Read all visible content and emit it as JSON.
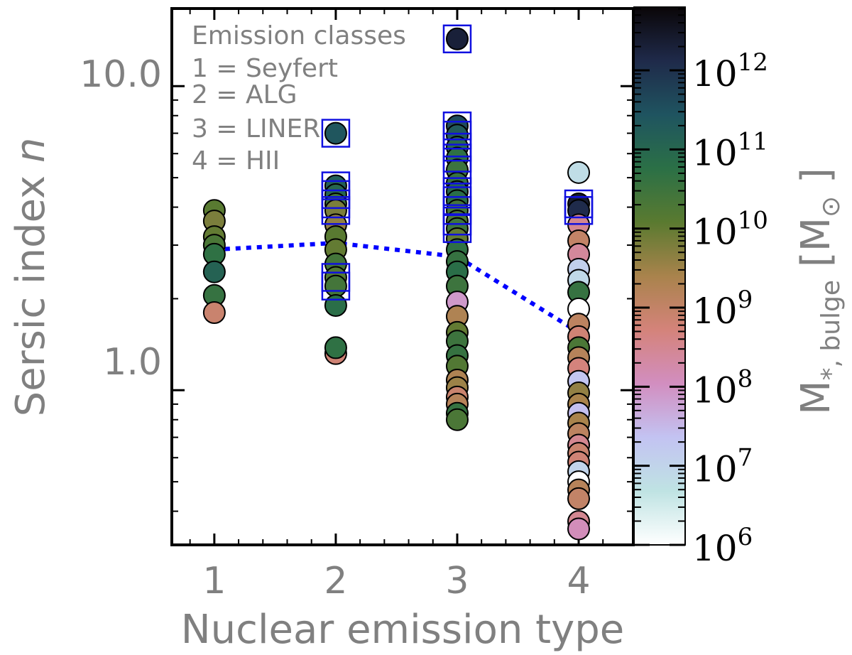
{
  "chart_data": {
    "type": "scatter",
    "xlabel": "Nuclear emission type",
    "ylabel": "Sersic index n",
    "yscale": "log",
    "xlim": [
      0.65,
      4.45
    ],
    "ylim": [
      0.31,
      18.0
    ],
    "xticks": [
      "1",
      "2",
      "3",
      "4"
    ],
    "yticks": [
      "1.0",
      "10.0"
    ],
    "legend_text": {
      "title": "Emission classes",
      "lines": [
        "1 = Seyfert",
        "2 = ALG",
        "3 = LINER",
        "4 = HII"
      ]
    },
    "colorbar": {
      "label": "M*, bulge [M⊙]",
      "scale": "log",
      "range": [
        6.0,
        12.8
      ],
      "tick_labels": [
        "10^6",
        "10^7",
        "10^8",
        "10^9",
        "10^10",
        "10^11",
        "10^12"
      ],
      "colors": [
        "#ffffff",
        "#bfe3e3",
        "#c3c3f2",
        "#d28ec0",
        "#d4837a",
        "#a9834c",
        "#5a7a30",
        "#2b7046",
        "#1f5460",
        "#1f2a4a",
        "#0a0608"
      ]
    },
    "trend_line": {
      "style": "dotted",
      "color": "#0000ff",
      "x": [
        1,
        2,
        3,
        4
      ],
      "y": [
        2.9,
        3.05,
        2.75,
        1.55
      ]
    },
    "points": [
      {
        "x": 1,
        "n": 3.9,
        "logM": 10.1
      },
      {
        "x": 1,
        "n": 3.6,
        "logM": 9.8
      },
      {
        "x": 1,
        "n": 3.2,
        "logM": 10.0
      },
      {
        "x": 1,
        "n": 3.0,
        "logM": 10.3
      },
      {
        "x": 1,
        "n": 2.8,
        "logM": 10.7
      },
      {
        "x": 1,
        "n": 2.45,
        "logM": 11.1
      },
      {
        "x": 1,
        "n": 2.05,
        "logM": 10.6
      },
      {
        "x": 1,
        "n": 1.8,
        "logM": 8.9
      },
      {
        "x": 2,
        "n": 7.0,
        "logM": 11.4,
        "boxed": true
      },
      {
        "x": 2,
        "n": 4.7,
        "logM": 11.2,
        "boxed": true
      },
      {
        "x": 2,
        "n": 4.4,
        "logM": 11.0,
        "boxed": true
      },
      {
        "x": 2,
        "n": 4.1,
        "logM": 10.5,
        "boxed": true
      },
      {
        "x": 2,
        "n": 3.9,
        "logM": 9.8,
        "boxed": true
      },
      {
        "x": 2,
        "n": 3.5,
        "logM": 9.6
      },
      {
        "x": 2,
        "n": 3.2,
        "logM": 10.1
      },
      {
        "x": 2,
        "n": 2.9,
        "logM": 10.0
      },
      {
        "x": 2,
        "n": 2.6,
        "logM": 10.4
      },
      {
        "x": 2,
        "n": 2.35,
        "logM": 10.2,
        "boxed": true
      },
      {
        "x": 2,
        "n": 2.2,
        "logM": 10.4,
        "boxed": true
      },
      {
        "x": 2,
        "n": 1.9,
        "logM": 10.8
      },
      {
        "x": 2,
        "n": 1.32,
        "logM": 8.8
      },
      {
        "x": 2,
        "n": 1.38,
        "logM": 10.7
      },
      {
        "x": 3,
        "n": 14.3,
        "logM": 12.3,
        "boxed": true
      },
      {
        "x": 3,
        "n": 7.4,
        "logM": 11.6,
        "boxed": true
      },
      {
        "x": 3,
        "n": 6.9,
        "logM": 11.3,
        "boxed": true
      },
      {
        "x": 3,
        "n": 6.3,
        "logM": 10.9,
        "boxed": true
      },
      {
        "x": 3,
        "n": 5.8,
        "logM": 10.7,
        "boxed": true
      },
      {
        "x": 3,
        "n": 5.3,
        "logM": 10.5,
        "boxed": true
      },
      {
        "x": 3,
        "n": 4.8,
        "logM": 10.6
      },
      {
        "x": 3,
        "n": 4.5,
        "logM": 11.0,
        "boxed": true
      },
      {
        "x": 3,
        "n": 4.2,
        "logM": 10.8,
        "boxed": true
      },
      {
        "x": 3,
        "n": 3.9,
        "logM": 10.4,
        "boxed": true
      },
      {
        "x": 3,
        "n": 3.6,
        "logM": 10.3,
        "boxed": true
      },
      {
        "x": 3,
        "n": 3.4,
        "logM": 10.5,
        "boxed": true
      },
      {
        "x": 3,
        "n": 3.15,
        "logM": 10.0
      },
      {
        "x": 3,
        "n": 2.9,
        "logM": 10.7
      },
      {
        "x": 3,
        "n": 2.65,
        "logM": 10.6
      },
      {
        "x": 3,
        "n": 2.45,
        "logM": 10.8
      },
      {
        "x": 3,
        "n": 2.2,
        "logM": 10.5
      },
      {
        "x": 3,
        "n": 1.95,
        "logM": 7.9
      },
      {
        "x": 3,
        "n": 1.75,
        "logM": 9.3
      },
      {
        "x": 3,
        "n": 1.55,
        "logM": 10.0
      },
      {
        "x": 3,
        "n": 1.45,
        "logM": 10.5
      },
      {
        "x": 3,
        "n": 1.3,
        "logM": 10.6
      },
      {
        "x": 3,
        "n": 1.2,
        "logM": 10.2
      },
      {
        "x": 3,
        "n": 1.08,
        "logM": 9.3
      },
      {
        "x": 3,
        "n": 1.02,
        "logM": 9.5
      },
      {
        "x": 3,
        "n": 0.95,
        "logM": 8.9
      },
      {
        "x": 3,
        "n": 0.9,
        "logM": 9.2
      },
      {
        "x": 3,
        "n": 0.84,
        "logM": 10.6
      },
      {
        "x": 3,
        "n": 0.8,
        "logM": 10.3
      },
      {
        "x": 4,
        "n": 5.2,
        "logM": 6.8
      },
      {
        "x": 4,
        "n": 4.1,
        "logM": 12.4,
        "boxed": true
      },
      {
        "x": 4,
        "n": 3.9,
        "logM": 12.1,
        "boxed": true
      },
      {
        "x": 4,
        "n": 3.5,
        "logM": 8.5
      },
      {
        "x": 4,
        "n": 3.1,
        "logM": 9.0
      },
      {
        "x": 4,
        "n": 2.8,
        "logM": 8.4
      },
      {
        "x": 4,
        "n": 2.5,
        "logM": 7.1
      },
      {
        "x": 4,
        "n": 2.3,
        "logM": 6.9
      },
      {
        "x": 4,
        "n": 2.1,
        "logM": 10.6
      },
      {
        "x": 4,
        "n": 1.85,
        "logM": 6.0
      },
      {
        "x": 4,
        "n": 1.65,
        "logM": 9.1
      },
      {
        "x": 4,
        "n": 1.5,
        "logM": 8.8
      },
      {
        "x": 4,
        "n": 1.38,
        "logM": 10.3
      },
      {
        "x": 4,
        "n": 1.28,
        "logM": 9.2
      },
      {
        "x": 4,
        "n": 1.18,
        "logM": 8.7
      },
      {
        "x": 4,
        "n": 1.07,
        "logM": 7.3
      },
      {
        "x": 4,
        "n": 0.98,
        "logM": 9.6
      },
      {
        "x": 4,
        "n": 0.9,
        "logM": 9.4
      },
      {
        "x": 4,
        "n": 0.84,
        "logM": 7.4
      },
      {
        "x": 4,
        "n": 0.78,
        "logM": 9.4
      },
      {
        "x": 4,
        "n": 0.72,
        "logM": 9.1
      },
      {
        "x": 4,
        "n": 0.66,
        "logM": 8.5
      },
      {
        "x": 4,
        "n": 0.62,
        "logM": 8.9
      },
      {
        "x": 4,
        "n": 0.58,
        "logM": 8.8
      },
      {
        "x": 4,
        "n": 0.54,
        "logM": 7.0
      },
      {
        "x": 4,
        "n": 0.5,
        "logM": 6.0
      },
      {
        "x": 4,
        "n": 0.47,
        "logM": 9.2
      },
      {
        "x": 4,
        "n": 0.44,
        "logM": 9.0
      },
      {
        "x": 4,
        "n": 0.37,
        "logM": 8.5
      },
      {
        "x": 4,
        "n": 0.35,
        "logM": 8.1
      }
    ]
  }
}
